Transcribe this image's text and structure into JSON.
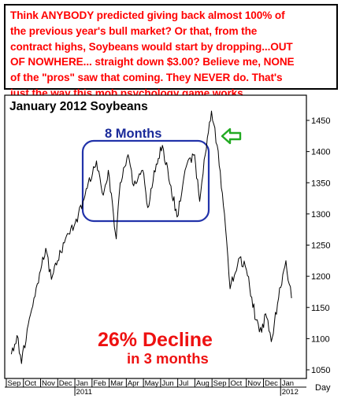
{
  "callout": {
    "lines": [
      "Think ANYBODY predicted giving back almost 100% of",
      "the previous year's bull market? Or that, from the",
      "contract highs, Soybeans would start by dropping...OUT",
      "OF NOWHERE... straight down $3.00? Believe me, NONE",
      "of the \"pros\" saw that coming. They NEVER do. That's",
      "just the way this mob psychology game works."
    ]
  },
  "chart_data": {
    "type": "line",
    "title": "January 2012 Soybeans",
    "xlabel": "Day",
    "ylabel": "",
    "ylim": [
      1040,
      1480
    ],
    "y_ticks": [
      1050,
      1100,
      1150,
      1200,
      1250,
      1300,
      1350,
      1400,
      1450
    ],
    "x_months": [
      "Sep",
      "Oct",
      "Nov",
      "Dec",
      "Jan",
      "Feb",
      "Mar",
      "Apr",
      "May",
      "Jun",
      "Jul",
      "Aug",
      "Sep",
      "Oct",
      "Nov",
      "Dec",
      "Jan"
    ],
    "x_years": [
      "2011",
      "2012"
    ],
    "series": [
      {
        "values": [
          [
            "2010-09-10",
            1075
          ],
          [
            "2010-09-20",
            1105
          ],
          [
            "2010-09-28",
            1060
          ],
          [
            "2010-10-08",
            1115
          ],
          [
            "2010-10-20",
            1165
          ],
          [
            "2010-11-01",
            1210
          ],
          [
            "2010-11-10",
            1245
          ],
          [
            "2010-11-20",
            1195
          ],
          [
            "2010-12-01",
            1225
          ],
          [
            "2010-12-15",
            1260
          ],
          [
            "2011-01-01",
            1285
          ],
          [
            "2011-01-15",
            1320
          ],
          [
            "2011-02-01",
            1365
          ],
          [
            "2011-02-08",
            1385
          ],
          [
            "2011-02-20",
            1330
          ],
          [
            "2011-03-01",
            1370
          ],
          [
            "2011-03-10",
            1300
          ],
          [
            "2011-03-15",
            1260
          ],
          [
            "2011-03-22",
            1350
          ],
          [
            "2011-04-05",
            1395
          ],
          [
            "2011-04-15",
            1345
          ],
          [
            "2011-05-01",
            1370
          ],
          [
            "2011-05-10",
            1310
          ],
          [
            "2011-05-25",
            1380
          ],
          [
            "2011-06-05",
            1410
          ],
          [
            "2011-06-20",
            1345
          ],
          [
            "2011-07-01",
            1295
          ],
          [
            "2011-07-15",
            1370
          ],
          [
            "2011-08-01",
            1395
          ],
          [
            "2011-08-10",
            1320
          ],
          [
            "2011-08-20",
            1395
          ],
          [
            "2011-08-31",
            1465
          ],
          [
            "2011-09-10",
            1410
          ],
          [
            "2011-09-23",
            1300
          ],
          [
            "2011-10-03",
            1180
          ],
          [
            "2011-10-20",
            1230
          ],
          [
            "2011-11-01",
            1210
          ],
          [
            "2011-11-18",
            1130
          ],
          [
            "2011-11-28",
            1110
          ],
          [
            "2011-12-05",
            1140
          ],
          [
            "2011-12-15",
            1095
          ],
          [
            "2011-12-28",
            1165
          ],
          [
            "2012-01-10",
            1225
          ],
          [
            "2012-01-20",
            1165
          ]
        ]
      }
    ],
    "annotations": {
      "box_label": "8 Months",
      "decline_label": "26% Decline",
      "decline_sublabel": "in 3 months"
    },
    "colors": {
      "price": "#000000",
      "box": "#2233aa",
      "arrow": "#22aa22",
      "decline": "#ee1111",
      "box_label": "#1a2a9a"
    }
  }
}
